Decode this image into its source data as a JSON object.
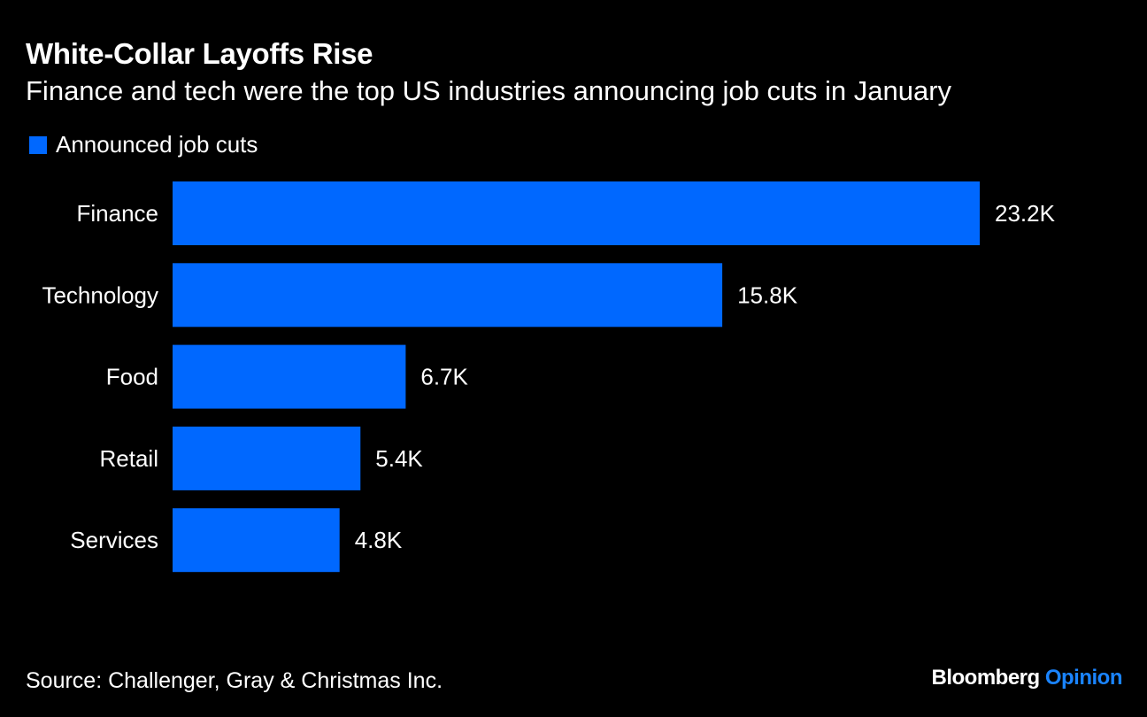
{
  "chart_data": {
    "type": "bar",
    "orientation": "horizontal",
    "title": "White-Collar Layoffs Rise",
    "subtitle": "Finance and tech were the top US industries announcing job cuts in January",
    "categories": [
      "Finance",
      "Technology",
      "Food",
      "Retail",
      "Services"
    ],
    "series": [
      {
        "name": "Announced job cuts",
        "values": [
          23.2,
          15.8,
          6.7,
          5.4,
          4.8
        ],
        "color": "#0068ff"
      }
    ],
    "data_labels": [
      "23.2K",
      "15.8K",
      "6.7K",
      "5.4K",
      "4.8K"
    ],
    "unit": "K",
    "xlim": [
      0,
      23.2
    ],
    "grid": false,
    "legend_position": "top-left",
    "source": "Source: Challenger, Gray & Christmas Inc."
  },
  "branding": {
    "name": "Bloomberg",
    "section": "Opinion",
    "section_color": "#1a84ff"
  },
  "colors": {
    "background": "#000000",
    "text": "#ffffff"
  }
}
